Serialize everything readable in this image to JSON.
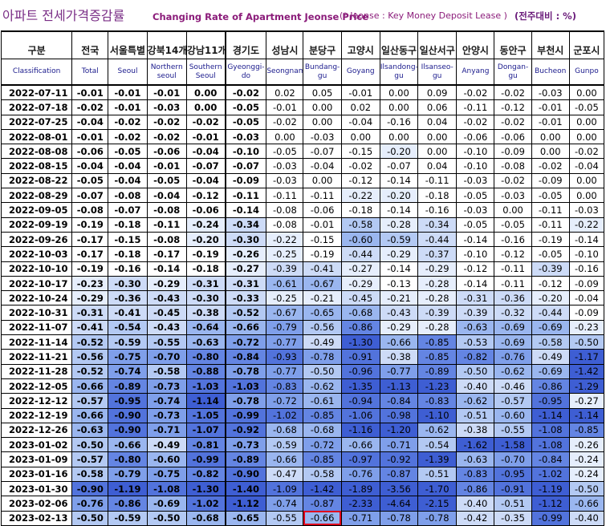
{
  "title": {
    "korean": "아파트 전세가격증감률",
    "english": "Changing Rate of Apartment Jeonse Price",
    "note": "(* Jeonse : Key Money Deposit Lease )",
    "unit": "(전주대비 : %)"
  },
  "columns": [
    {
      "ko": "구분",
      "en": "Classification"
    },
    {
      "ko": "전국",
      "en": "Total"
    },
    {
      "ko": "서울특별",
      "en": "Seoul"
    },
    {
      "ko": "강북14개",
      "en": "Northern seoul"
    },
    {
      "ko": "강남11개",
      "en": "Southern Seoul"
    },
    {
      "ko": "경기도",
      "en": "Gyeonggi-do"
    },
    {
      "ko": "성남시",
      "en": "Seongnam"
    },
    {
      "ko": "분당구",
      "en": "Bundang-gu"
    },
    {
      "ko": "고양시",
      "en": "Goyang"
    },
    {
      "ko": "일산동구",
      "en": "Ilsandong-gu"
    },
    {
      "ko": "일산서구",
      "en": "Ilsanseo-gu"
    },
    {
      "ko": "안양시",
      "en": "Anyang"
    },
    {
      "ko": "동안구",
      "en": "Dongan-gu"
    },
    {
      "ko": "부천시",
      "en": "Bucheon"
    },
    {
      "ko": "군포시",
      "en": "Gunpo"
    }
  ],
  "rows": [
    {
      "date": "2022-07-11",
      "values": [
        "-0.01",
        "-0.01",
        "-0.01",
        "0.00",
        "-0.02",
        "0.02",
        "0.05",
        "-0.01",
        "0.00",
        "0.09",
        "-0.02",
        "-0.02",
        "-0.03",
        "0.00"
      ]
    },
    {
      "date": "2022-07-18",
      "values": [
        "-0.02",
        "-0.01",
        "-0.03",
        "0.00",
        "-0.05",
        "-0.01",
        "0.00",
        "0.02",
        "0.00",
        "0.06",
        "-0.11",
        "-0.12",
        "-0.01",
        "-0.05"
      ]
    },
    {
      "date": "2022-07-25",
      "values": [
        "-0.04",
        "-0.02",
        "-0.02",
        "-0.02",
        "-0.05",
        "-0.02",
        "0.00",
        "-0.04",
        "-0.16",
        "0.04",
        "-0.02",
        "-0.02",
        "-0.01",
        "0.00"
      ]
    },
    {
      "date": "2022-08-01",
      "values": [
        "-0.01",
        "-0.02",
        "-0.02",
        "-0.01",
        "-0.03",
        "0.00",
        "-0.03",
        "0.00",
        "0.00",
        "0.00",
        "-0.06",
        "-0.06",
        "0.00",
        "0.00"
      ]
    },
    {
      "date": "2022-08-08",
      "values": [
        "-0.06",
        "-0.05",
        "-0.06",
        "-0.04",
        "-0.10",
        "-0.05",
        "-0.07",
        "-0.15",
        "-0.20",
        "0.00",
        "-0.10",
        "-0.09",
        "0.00",
        "-0.02"
      ]
    },
    {
      "date": "2022-08-15",
      "values": [
        "-0.04",
        "-0.04",
        "-0.01",
        "-0.07",
        "-0.07",
        "-0.03",
        "-0.04",
        "-0.02",
        "-0.07",
        "0.04",
        "-0.10",
        "-0.08",
        "-0.02",
        "-0.04"
      ]
    },
    {
      "date": "2022-08-22",
      "values": [
        "-0.05",
        "-0.04",
        "-0.05",
        "-0.04",
        "-0.09",
        "-0.03",
        "0.00",
        "-0.12",
        "-0.14",
        "-0.11",
        "-0.03",
        "-0.02",
        "-0.09",
        "0.00"
      ]
    },
    {
      "date": "2022-08-29",
      "values": [
        "-0.07",
        "-0.08",
        "-0.04",
        "-0.12",
        "-0.11",
        "-0.11",
        "-0.11",
        "-0.22",
        "-0.20",
        "-0.18",
        "-0.05",
        "-0.03",
        "-0.05",
        "0.00"
      ]
    },
    {
      "date": "2022-09-05",
      "values": [
        "-0.08",
        "-0.07",
        "-0.08",
        "-0.06",
        "-0.14",
        "-0.08",
        "-0.06",
        "-0.18",
        "-0.14",
        "-0.16",
        "-0.03",
        "0.00",
        "-0.11",
        "-0.03"
      ]
    },
    {
      "date": "2022-09-19",
      "values": [
        "-0.19",
        "-0.18",
        "-0.11",
        "-0.24",
        "-0.34",
        "-0.08",
        "-0.01",
        "-0.58",
        "-0.28",
        "-0.34",
        "-0.05",
        "-0.05",
        "-0.11",
        "-0.22"
      ]
    },
    {
      "date": "2022-09-26",
      "values": [
        "-0.17",
        "-0.15",
        "-0.08",
        "-0.20",
        "-0.30",
        "-0.22",
        "-0.15",
        "-0.60",
        "-0.59",
        "-0.44",
        "-0.14",
        "-0.16",
        "-0.19",
        "-0.14"
      ]
    },
    {
      "date": "2022-10-03",
      "values": [
        "-0.17",
        "-0.18",
        "-0.17",
        "-0.19",
        "-0.26",
        "-0.25",
        "-0.19",
        "-0.44",
        "-0.29",
        "-0.37",
        "-0.10",
        "-0.12",
        "-0.05",
        "-0.10"
      ]
    },
    {
      "date": "2022-10-10",
      "values": [
        "-0.19",
        "-0.16",
        "-0.14",
        "-0.18",
        "-0.27",
        "-0.39",
        "-0.41",
        "-0.27",
        "-0.14",
        "-0.29",
        "-0.12",
        "-0.11",
        "-0.39",
        "-0.16"
      ]
    },
    {
      "date": "2022-10-17",
      "values": [
        "-0.23",
        "-0.30",
        "-0.29",
        "-0.31",
        "-0.31",
        "-0.61",
        "-0.67",
        "-0.29",
        "-0.13",
        "-0.28",
        "-0.14",
        "-0.11",
        "-0.12",
        "-0.09"
      ]
    },
    {
      "date": "2022-10-24",
      "values": [
        "-0.29",
        "-0.36",
        "-0.43",
        "-0.30",
        "-0.33",
        "-0.25",
        "-0.21",
        "-0.45",
        "-0.21",
        "-0.28",
        "-0.31",
        "-0.36",
        "-0.20",
        "-0.04"
      ]
    },
    {
      "date": "2022-10-31",
      "values": [
        "-0.31",
        "-0.41",
        "-0.45",
        "-0.38",
        "-0.52",
        "-0.67",
        "-0.65",
        "-0.68",
        "-0.43",
        "-0.39",
        "-0.39",
        "-0.32",
        "-0.44",
        "-0.09"
      ]
    },
    {
      "date": "2022-11-07",
      "values": [
        "-0.41",
        "-0.54",
        "-0.43",
        "-0.64",
        "-0.66",
        "-0.79",
        "-0.56",
        "-0.86",
        "-0.29",
        "-0.28",
        "-0.63",
        "-0.69",
        "-0.69",
        "-0.23"
      ]
    },
    {
      "date": "2022-11-14",
      "values": [
        "-0.52",
        "-0.59",
        "-0.55",
        "-0.63",
        "-0.72",
        "-0.77",
        "-0.49",
        "-1.30",
        "-0.66",
        "-0.85",
        "-0.53",
        "-0.69",
        "-0.58",
        "-0.50"
      ]
    },
    {
      "date": "2022-11-21",
      "values": [
        "-0.56",
        "-0.75",
        "-0.70",
        "-0.80",
        "-0.84",
        "-0.93",
        "-0.78",
        "-0.91",
        "-0.38",
        "-0.85",
        "-0.82",
        "-0.76",
        "-0.49",
        "-1.17"
      ]
    },
    {
      "date": "2022-11-28",
      "values": [
        "-0.52",
        "-0.74",
        "-0.58",
        "-0.88",
        "-0.78",
        "-0.77",
        "-0.50",
        "-0.96",
        "-0.77",
        "-0.89",
        "-0.50",
        "-0.62",
        "-0.69",
        "-1.42"
      ]
    },
    {
      "date": "2022-12-05",
      "values": [
        "-0.66",
        "-0.89",
        "-0.73",
        "-1.03",
        "-1.03",
        "-0.83",
        "-0.62",
        "-1.35",
        "-1.13",
        "-1.23",
        "-0.40",
        "-0.46",
        "-0.86",
        "-1.29"
      ]
    },
    {
      "date": "2022-12-12",
      "values": [
        "-0.57",
        "-0.95",
        "-0.74",
        "-1.14",
        "-0.78",
        "-0.72",
        "-0.61",
        "-0.94",
        "-0.84",
        "-0.83",
        "-0.62",
        "-0.57",
        "-0.95",
        "-0.27"
      ]
    },
    {
      "date": "2022-12-19",
      "values": [
        "-0.66",
        "-0.90",
        "-0.73",
        "-1.05",
        "-0.99",
        "-1.02",
        "-0.85",
        "-1.06",
        "-0.98",
        "-1.10",
        "-0.51",
        "-0.60",
        "-1.14",
        "-1.14"
      ]
    },
    {
      "date": "2022-12-26",
      "values": [
        "-0.63",
        "-0.90",
        "-0.71",
        "-1.07",
        "-0.92",
        "-0.68",
        "-0.68",
        "-1.16",
        "-1.20",
        "-0.62",
        "-0.38",
        "-0.55",
        "-1.08",
        "-0.85"
      ]
    },
    {
      "date": "2023-01-02",
      "values": [
        "-0.50",
        "-0.66",
        "-0.49",
        "-0.81",
        "-0.73",
        "-0.59",
        "-0.72",
        "-0.66",
        "-0.71",
        "-0.54",
        "-1.62",
        "-1.58",
        "-1.08",
        "-0.26"
      ]
    },
    {
      "date": "2023-01-09",
      "values": [
        "-0.57",
        "-0.80",
        "-0.60",
        "-0.99",
        "-0.89",
        "-0.66",
        "-0.85",
        "-0.97",
        "-0.92",
        "-1.39",
        "-0.63",
        "-0.70",
        "-0.84",
        "-0.24"
      ]
    },
    {
      "date": "2023-01-16",
      "values": [
        "-0.58",
        "-0.79",
        "-0.75",
        "-0.82",
        "-0.90",
        "-0.47",
        "-0.58",
        "-0.76",
        "-0.87",
        "-0.51",
        "-0.83",
        "-0.95",
        "-1.02",
        "-0.24"
      ]
    },
    {
      "date": "2023-01-30",
      "values": [
        "-0.90",
        "-1.19",
        "-1.08",
        "-1.30",
        "-1.40",
        "-1.09",
        "-1.42",
        "-1.89",
        "-3.56",
        "-1.70",
        "-0.86",
        "-0.91",
        "-1.19",
        "-0.50"
      ]
    },
    {
      "date": "2023-02-06",
      "values": [
        "-0.76",
        "-0.86",
        "-0.69",
        "-1.02",
        "-1.12",
        "-0.74",
        "-0.87",
        "-2.33",
        "-4.64",
        "-2.15",
        "-0.40",
        "-0.51",
        "-1.12",
        "-0.66"
      ]
    },
    {
      "date": "2023-02-13",
      "values": [
        "-0.50",
        "-0.59",
        "-0.50",
        "-0.68",
        "-0.65",
        "-0.55",
        "-0.66",
        "-0.71",
        "-0.78",
        "-0.78",
        "-0.42",
        "-0.35",
        "-0.99",
        "-0.40"
      ]
    }
  ]
}
